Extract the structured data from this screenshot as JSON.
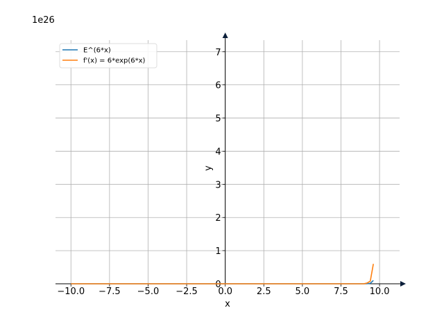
{
  "chart_data": {
    "type": "line",
    "xlabel": "x",
    "ylabel": "y",
    "offset_label": "1e26",
    "xlim": [
      -11.0,
      11.3
    ],
    "ylim": [
      0,
      7.35
    ],
    "y_scale_factor": 1e+26,
    "grid": true,
    "legend_position": "top-left",
    "x_ticks": [
      -10.0,
      -7.5,
      -5.0,
      -2.5,
      0.0,
      2.5,
      5.0,
      7.5,
      10.0
    ],
    "x_tick_labels": [
      "−10.0",
      "−7.5",
      "−5.0",
      "−2.5",
      "0.0",
      "2.5",
      "5.0",
      "7.5",
      "10.0"
    ],
    "y_ticks": [
      0,
      1,
      2,
      3,
      4,
      5,
      6,
      7
    ],
    "y_tick_labels": [
      "0",
      "1",
      "2",
      "3",
      "4",
      "5",
      "6",
      "7"
    ],
    "series": [
      {
        "name": "E^(6*x)",
        "color": "#1f77b4",
        "x": [
          -10,
          -5,
          0,
          5,
          8.5,
          9.0,
          9.2,
          9.4,
          9.6
        ],
        "y": [
          0,
          0,
          0,
          0,
          0.0,
          0.0,
          0.004,
          0.013,
          0.1
        ]
      },
      {
        "name": "f'(x) = 6*exp(6*x)",
        "color": "#ff7f0e",
        "x": [
          -10,
          -5,
          0,
          5,
          8.5,
          9.0,
          9.2,
          9.4,
          9.6
        ],
        "y": [
          0,
          0,
          0,
          0,
          0.0,
          0.002,
          0.024,
          0.08,
          0.6
        ]
      }
    ]
  }
}
